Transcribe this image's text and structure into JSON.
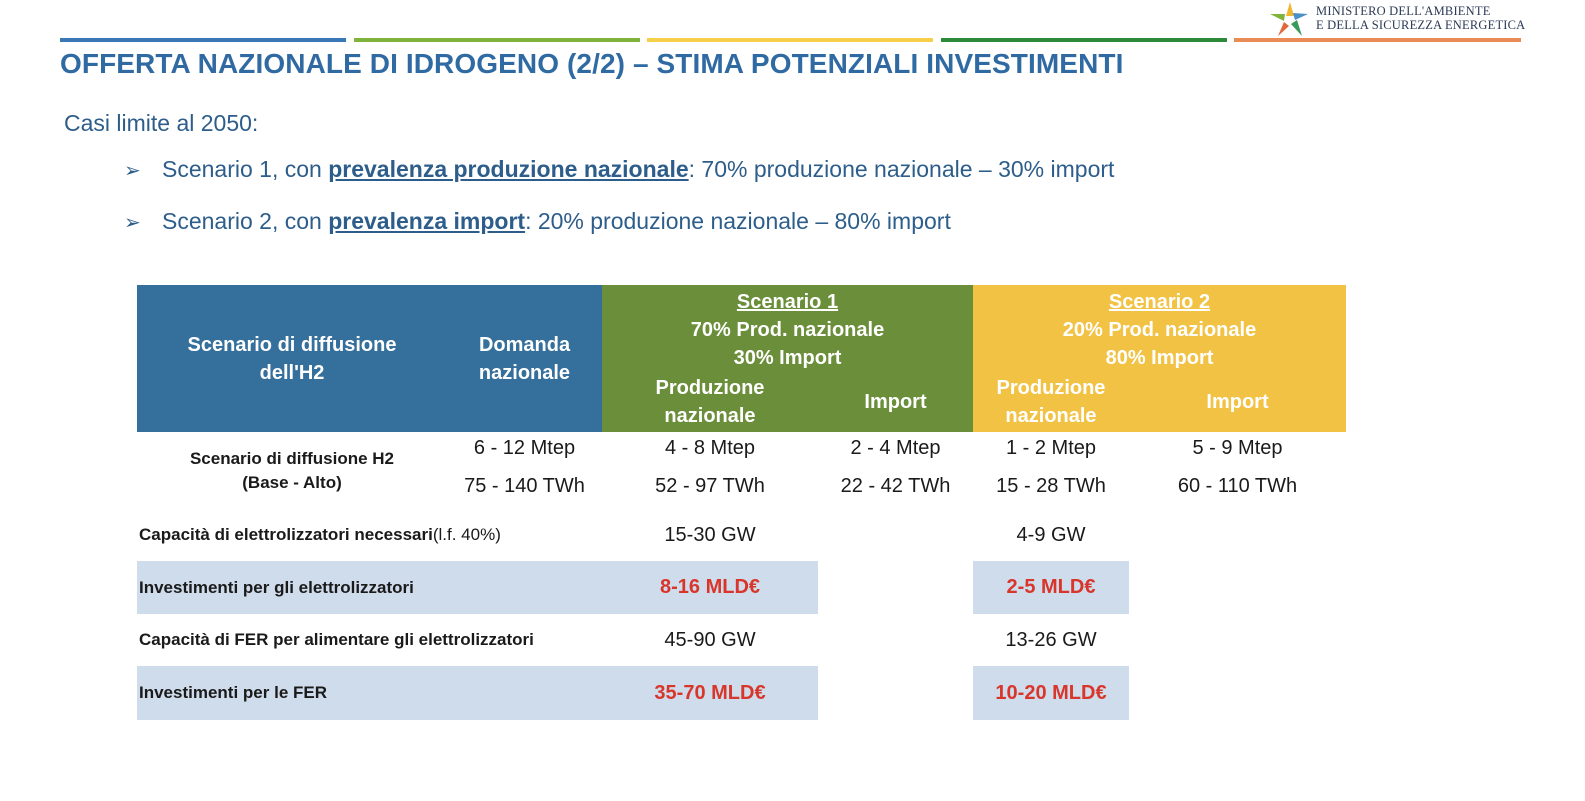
{
  "logo": {
    "line1": "MINISTERO DELL'AMBIENTE",
    "line2": "E DELLA SICUREZZA ENERGETICA"
  },
  "title": "OFFERTA NAZIONALE DI IDROGENO (2/2) – STIMA POTENZIALI INVESTIMENTI",
  "subtitle": "Casi limite al 2050:",
  "bullets": [
    {
      "prefix": "Scenario 1, con ",
      "highlight": "prevalenza produzione nazionale",
      "suffix": ": 70% produzione nazionale – 30% import"
    },
    {
      "prefix": "Scenario 2, con ",
      "highlight": "prevalenza import",
      "suffix": ": 20% produzione nazionale – 80% import"
    }
  ],
  "table": {
    "header": {
      "col1": "Scenario di diffusione dell'H2",
      "col2": "Domanda nazionale",
      "s1_title": "Scenario 1",
      "s1_line2": "70% Prod. nazionale",
      "s1_line3": "30% Import",
      "s2_title": "Scenario 2",
      "s2_line2": "20% Prod. nazionale",
      "s2_line3": "80% Import",
      "prod": "Produzione nazionale",
      "import": "Import"
    },
    "row_diffusione": {
      "label_line1": "Scenario di diffusione H2",
      "label_line2": "(Base - Alto)",
      "domanda_mtep": "6 - 12 Mtep",
      "domanda_twh": "75 - 140 TWh",
      "s1_prod_mtep": "4 - 8 Mtep",
      "s1_prod_twh": "52 - 97 TWh",
      "s1_imp_mtep": "2 - 4 Mtep",
      "s1_imp_twh": "22 - 42 TWh",
      "s2_prod_mtep": "1 - 2 Mtep",
      "s2_prod_twh": "15 - 28 TWh",
      "s2_imp_mtep": "5 - 9 Mtep",
      "s2_imp_twh": "60 - 110 TWh"
    },
    "row_capacita": {
      "label": "Capacità di elettrolizzatori necessari",
      "note": " (l.f. 40%)",
      "s1": "15-30 GW",
      "s2": "4-9 GW"
    },
    "row_inv_elettro": {
      "label": "Investimenti per gli elettrolizzatori",
      "s1": "8-16 MLD€",
      "s2": "2-5 MLD€"
    },
    "row_fer": {
      "label": "Capacità di FER per alimentare gli elettrolizzatori",
      "s1": "45-90 GW",
      "s2": "13-26 GW"
    },
    "row_inv_fer": {
      "label": "Investimenti per le FER",
      "s1": "35-70 MLD€",
      "s2": "10-20 MLD€"
    }
  }
}
